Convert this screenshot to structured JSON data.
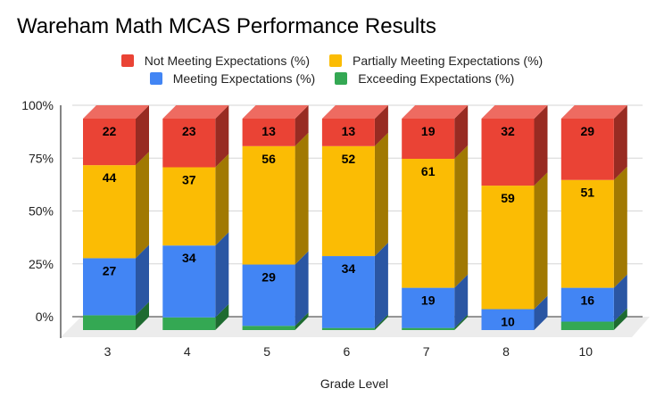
{
  "chart_data": {
    "type": "bar",
    "stacked": "percent",
    "three_d": true,
    "title": "Wareham Math MCAS Performance Results",
    "xlabel": "Grade Level",
    "ylabel": "",
    "ylim": [
      0,
      100
    ],
    "yticks": [
      "0%",
      "25%",
      "50%",
      "75%",
      "100%"
    ],
    "grid": true,
    "legend_position": "top",
    "categories": [
      "3",
      "4",
      "5",
      "6",
      "7",
      "8",
      "10"
    ],
    "series": [
      {
        "name": "Exceeding Expectations (%)",
        "color": "#34a853",
        "side": "#1e6b30",
        "top": "#5bbd73",
        "values": [
          7,
          6,
          2,
          1,
          1,
          0,
          4
        ],
        "labels_shown": false
      },
      {
        "name": "Meeting Expectations (%)",
        "color": "#4285f4",
        "side": "#2a56a3",
        "top": "#6fa3f7",
        "values": [
          27,
          34,
          29,
          34,
          19,
          10,
          16
        ],
        "labels_shown": true
      },
      {
        "name": "Partially Meeting Expectations (%)",
        "color": "#fbbc04",
        "side": "#a17902",
        "top": "#fccf4d",
        "values": [
          44,
          37,
          56,
          52,
          61,
          59,
          51
        ],
        "labels_shown": true
      },
      {
        "name": "Not Meeting Expectations (%)",
        "color": "#ea4335",
        "side": "#982b22",
        "top": "#ee6b61",
        "values": [
          22,
          23,
          13,
          13,
          19,
          32,
          29
        ],
        "labels_shown": true
      }
    ],
    "legend_rows": [
      [
        {
          "name": "Not Meeting Expectations (%)",
          "color": "#ea4335"
        },
        {
          "name": "Partially Meeting Expectations (%)",
          "color": "#fbbc04"
        }
      ],
      [
        {
          "name": "Meeting Expectations (%)",
          "color": "#4285f4"
        },
        {
          "name": "Exceeding Expectations (%)",
          "color": "#34a853"
        }
      ]
    ]
  }
}
